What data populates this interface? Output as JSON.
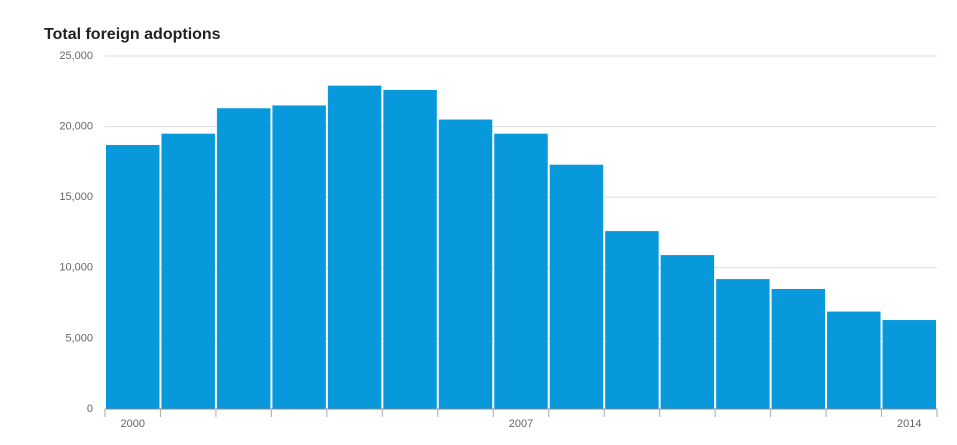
{
  "chart_data": {
    "type": "bar",
    "title": "Total foreign adoptions",
    "categories": [
      "2000",
      null,
      null,
      null,
      null,
      null,
      null,
      "2007",
      null,
      null,
      null,
      null,
      null,
      null,
      "2014"
    ],
    "values": [
      18700,
      19500,
      21300,
      21500,
      22900,
      22600,
      20500,
      19500,
      17300,
      12600,
      10900,
      9200,
      8500,
      6900,
      6300
    ],
    "color": "#0799dc",
    "ylim": [
      0,
      25000
    ],
    "yticks": [
      0,
      {
        "value": 5000,
        "label": "5,000"
      },
      {
        "value": 10000,
        "label": "10,000"
      },
      {
        "value": 15000,
        "label": "15,000"
      },
      {
        "value": 20000,
        "label": "20,000"
      },
      {
        "value": 25000,
        "label": "25,000"
      }
    ],
    "grid": true
  }
}
